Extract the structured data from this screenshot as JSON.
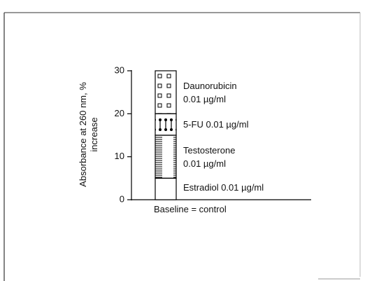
{
  "chart_data": {
    "type": "stacked_bar",
    "y_label": "Absorbance at 260 nm, % increase",
    "x_label": "Baseline = control",
    "ylim": [
      0,
      30
    ],
    "yticks": [
      0,
      10,
      20,
      30
    ],
    "series": [
      {
        "name": "Estradiol 0.01 µg/ml",
        "color": "#000000",
        "pattern": "none",
        "values": [
          5
        ]
      },
      {
        "name": "Testosterone 0.01 µg/ml",
        "color": "#000000",
        "pattern": "hlines",
        "values": [
          10
        ]
      },
      {
        "name": "5-FU 0.01 µg/ml",
        "color": "#000000",
        "pattern": "dumbbells",
        "values": [
          5
        ]
      },
      {
        "name": "Daunorubicin 0.01 µg/ml",
        "color": "#000000",
        "pattern": "squares",
        "values": [
          10
        ]
      }
    ]
  }
}
